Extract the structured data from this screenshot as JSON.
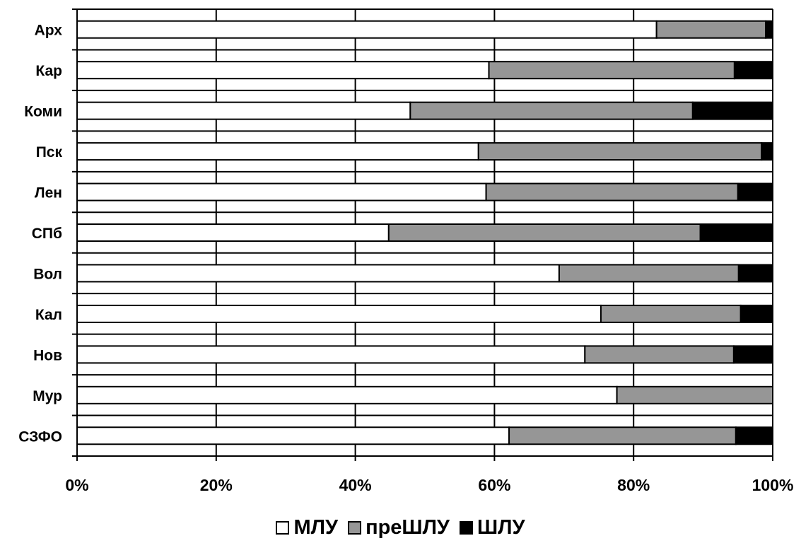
{
  "chart_data": {
    "type": "bar",
    "orientation": "horizontal",
    "stacked": "percent",
    "categories": [
      "Арх",
      "Кар",
      "Коми",
      "Пск",
      "Лен",
      "СПб",
      "Вол",
      "Кал",
      "Нов",
      "Мур",
      "СЗФО"
    ],
    "series": [
      {
        "name": "МЛУ",
        "color": "#ffffff",
        "values": [
          83.3,
          59.2,
          47.9,
          57.7,
          58.8,
          44.8,
          69.3,
          75.3,
          73.0,
          77.6,
          62.1
        ]
      },
      {
        "name": "преШЛУ",
        "color": "#969696",
        "values": [
          15.7,
          35.3,
          40.6,
          40.7,
          36.2,
          44.8,
          25.8,
          20.1,
          21.4,
          22.4,
          32.6
        ]
      },
      {
        "name": "ШЛУ",
        "color": "#000000",
        "values": [
          1.0,
          5.5,
          11.5,
          1.6,
          5.0,
          10.4,
          4.9,
          4.6,
          5.6,
          0.0,
          5.3
        ]
      }
    ],
    "x_ticks": [
      "0%",
      "20%",
      "40%",
      "60%",
      "80%",
      "100%"
    ],
    "xlim": [
      0,
      100
    ],
    "grid": true,
    "legend_position": "bottom-center"
  }
}
